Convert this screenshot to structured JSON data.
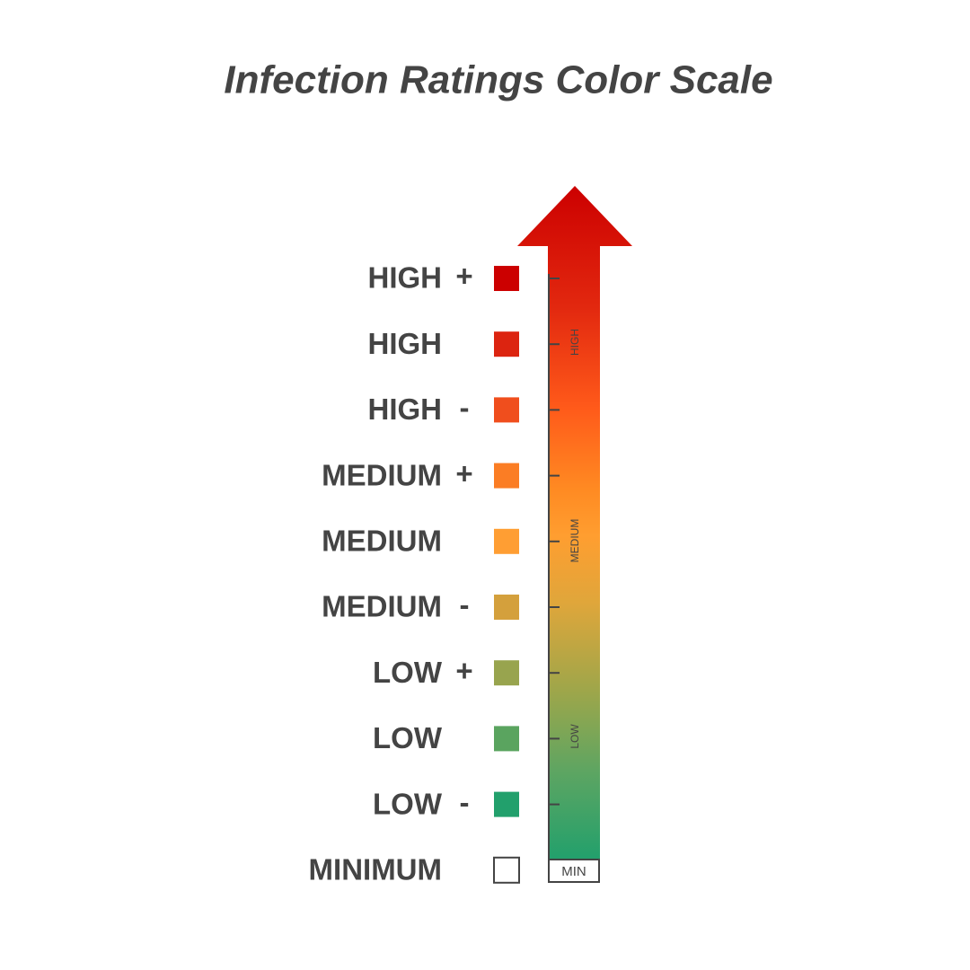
{
  "title": "Infection Ratings Color Scale",
  "levels": [
    {
      "label": "HIGH",
      "modifier": "+",
      "color": "#cc0000"
    },
    {
      "label": "HIGH",
      "color": "#dc2410"
    },
    {
      "label": "HIGH",
      "modifier": "-",
      "color": "#f04e1d"
    },
    {
      "label": "MEDIUM",
      "modifier": "+",
      "color": "#fb7d24"
    },
    {
      "label": "MEDIUM",
      "color": "#ff9e33"
    },
    {
      "label": "MEDIUM",
      "modifier": "-",
      "color": "#d4a03c"
    },
    {
      "label": "LOW",
      "modifier": "+",
      "color": "#98a44e"
    },
    {
      "label": "LOW",
      "color": "#5aa45f"
    },
    {
      "label": "LOW",
      "modifier": "-",
      "color": "#22a06c"
    },
    {
      "label": "MINIMUM",
      "color": "#ffffff"
    }
  ],
  "arrow": {
    "high": "HIGH",
    "medium": "MEDIUM",
    "low": "LOW",
    "min": "MIN"
  }
}
